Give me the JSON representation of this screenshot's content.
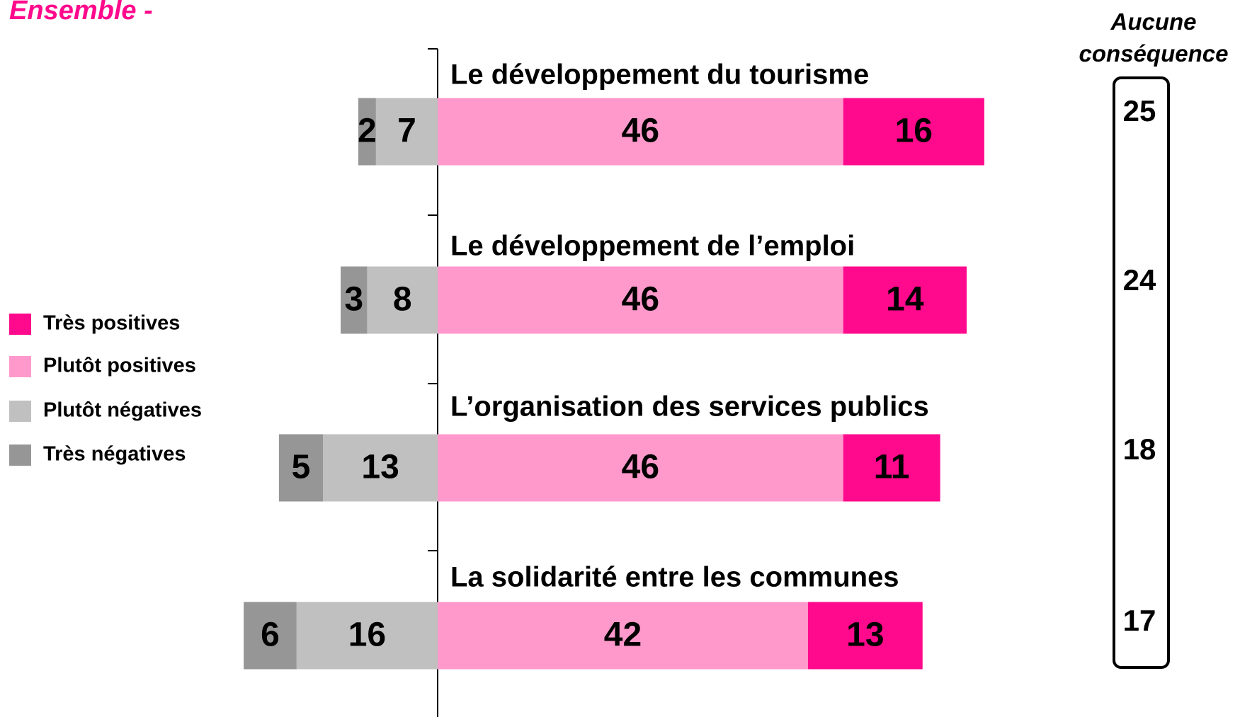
{
  "chart_data": {
    "type": "diverging-bar",
    "title": "Ensemble -",
    "categories": [
      "Le développement du tourisme",
      "Le développement de l’emploi",
      "L’organisation des services publics",
      "La solidarité entre les communes"
    ],
    "series": [
      {
        "name": "Très positives",
        "color": "#ff0a8c",
        "values": [
          16,
          14,
          11,
          13
        ]
      },
      {
        "name": "Plutôt positives",
        "color": "#ff99cc",
        "values": [
          46,
          46,
          46,
          42
        ]
      },
      {
        "name": "Plutôt négatives",
        "color": "#c0c0c0",
        "values": [
          7,
          8,
          13,
          16
        ]
      },
      {
        "name": "Très négatives",
        "color": "#969696",
        "values": [
          2,
          3,
          5,
          6
        ]
      }
    ],
    "side_column": {
      "title": "Aucune conséquence",
      "values": [
        25,
        24,
        18,
        17
      ]
    }
  }
}
